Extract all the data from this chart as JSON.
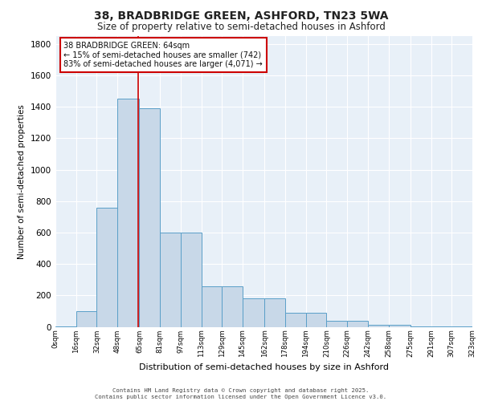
{
  "title_line1": "38, BRADBRIDGE GREEN, ASHFORD, TN23 5WA",
  "title_line2": "Size of property relative to semi-detached houses in Ashford",
  "xlabel": "Distribution of semi-detached houses by size in Ashford",
  "ylabel": "Number of semi-detached properties",
  "annotation_title": "38 BRADBRIDGE GREEN: 64sqm",
  "annotation_line2": "← 15% of semi-detached houses are smaller (742)",
  "annotation_line3": "83% of semi-detached houses are larger (4,071) →",
  "property_size": 64,
  "bin_edges": [
    0,
    16,
    32,
    48,
    65,
    81,
    97,
    113,
    129,
    145,
    162,
    178,
    194,
    210,
    226,
    242,
    258,
    275,
    291,
    307,
    323
  ],
  "bin_labels": [
    "0sqm",
    "16sqm",
    "32sqm",
    "48sqm",
    "65sqm",
    "81sqm",
    "97sqm",
    "113sqm",
    "129sqm",
    "145sqm",
    "162sqm",
    "178sqm",
    "194sqm",
    "210sqm",
    "226sqm",
    "242sqm",
    "258sqm",
    "275sqm",
    "291sqm",
    "307sqm",
    "323sqm"
  ],
  "bar_heights": [
    5,
    100,
    760,
    1450,
    1390,
    600,
    600,
    260,
    260,
    180,
    180,
    90,
    90,
    40,
    40,
    15,
    15,
    5,
    5,
    3,
    3
  ],
  "bar_color": "#c8d8e8",
  "bar_edge_color": "#5a9fc8",
  "grid_color": "#c8d8e8",
  "vline_color": "#cc0000",
  "annotation_box_color": "#cc0000",
  "background_color": "#e8f0f8",
  "ylim": [
    0,
    1850
  ],
  "yticks": [
    0,
    200,
    400,
    600,
    800,
    1000,
    1200,
    1400,
    1600,
    1800
  ],
  "footer_line1": "Contains HM Land Registry data © Crown copyright and database right 2025.",
  "footer_line2": "Contains public sector information licensed under the Open Government Licence v3.0."
}
